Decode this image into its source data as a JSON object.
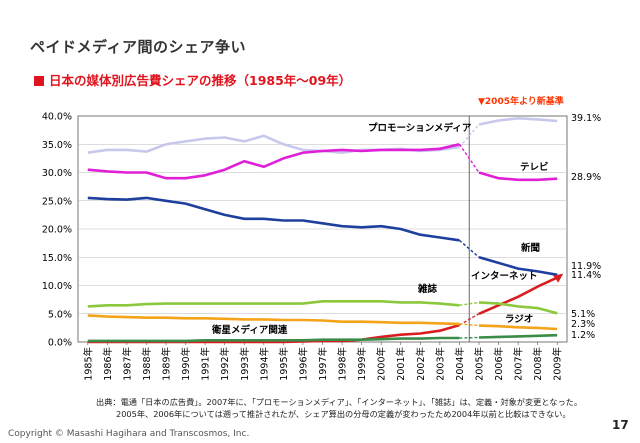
{
  "slide": {
    "title": "ペイドメディア間のシェア争い",
    "subtitle": "日本の媒体別広告費シェアの推移（1985年～09年）",
    "note": "▼2005年より新基準",
    "source_lines": [
      "出典：電通「日本の広告費」。2007年に、「プロモーションメディア」、「インターネット」、「雑誌」は、定義・対象が変更となった。",
      "2005年、2006年については遡って推計されたが、シェア算出の分母の定義が変わったため2004年以前と比較はできない。"
    ],
    "copyright": "Copyright © Masashi Hagihara and Transcosmos, Inc.",
    "page_number": "17"
  },
  "chart_data": {
    "type": "line",
    "x": [
      "1985年",
      "1986年",
      "1987年",
      "1988年",
      "1989年",
      "1990年",
      "1991年",
      "1992年",
      "1993年",
      "1994年",
      "1995年",
      "1996年",
      "1997年",
      "1998年",
      "1999年",
      "2000年",
      "2001年",
      "2002年",
      "2003年",
      "2004年",
      "2005年",
      "2006年",
      "2007年",
      "2008年",
      "2009年"
    ],
    "ylim": [
      0,
      40
    ],
    "yticks": [
      "0.0%",
      "5.0%",
      "10.0%",
      "15.0%",
      "20.0%",
      "25.0%",
      "30.0%",
      "35.0%",
      "40.0%"
    ],
    "break_after_index": 19,
    "series": [
      {
        "name": "プロモーションメディア",
        "color": "#c8c8ec",
        "end_label": "39.1%",
        "values": [
          33.5,
          34.0,
          34.0,
          33.7,
          35.0,
          35.5,
          36.0,
          36.2,
          35.5,
          36.5,
          35.0,
          34.0,
          33.8,
          33.5,
          34.0,
          34.0,
          34.2,
          33.8,
          34.0,
          34.5,
          38.5,
          39.2,
          39.6,
          39.4,
          39.1
        ]
      },
      {
        "name": "テレビ",
        "color": "#e020d8",
        "end_label": "28.9%",
        "values": [
          30.5,
          30.2,
          30.0,
          30.0,
          29.0,
          29.0,
          29.5,
          30.5,
          32.0,
          31.0,
          32.5,
          33.5,
          33.8,
          34.0,
          33.8,
          34.0,
          34.0,
          34.0,
          34.2,
          35.0,
          30.0,
          29.0,
          28.7,
          28.7,
          28.9
        ]
      },
      {
        "name": "新聞",
        "color": "#1f3f9e",
        "end_label": "11.9%",
        "values": [
          25.5,
          25.3,
          25.2,
          25.5,
          25.0,
          24.5,
          23.5,
          22.5,
          21.8,
          21.8,
          21.5,
          21.5,
          21.0,
          20.5,
          20.3,
          20.5,
          20.0,
          19.0,
          18.5,
          18.0,
          15.0,
          14.0,
          13.0,
          12.5,
          11.9
        ]
      },
      {
        "name": "インターネット",
        "color": "#d81e1e",
        "end_label": "11.4%",
        "values": [
          0,
          0,
          0,
          0,
          0,
          0,
          0,
          0,
          0,
          0,
          0,
          0.1,
          0.2,
          0.2,
          0.4,
          0.9,
          1.3,
          1.5,
          2.0,
          3.0,
          5.0,
          6.5,
          8.0,
          9.8,
          11.4
        ]
      },
      {
        "name": "雑誌",
        "color": "#8cc83c",
        "end_label": "5.1%",
        "values": [
          6.3,
          6.5,
          6.5,
          6.7,
          6.8,
          6.8,
          6.8,
          6.8,
          6.8,
          6.8,
          6.8,
          6.8,
          7.2,
          7.2,
          7.2,
          7.2,
          7.0,
          7.0,
          6.8,
          6.5,
          7.0,
          6.8,
          6.3,
          6.0,
          5.1
        ]
      },
      {
        "name": "ラジオ",
        "color": "#f5a31a",
        "end_label": "2.3%",
        "values": [
          4.7,
          4.5,
          4.4,
          4.3,
          4.3,
          4.2,
          4.2,
          4.1,
          4.0,
          4.0,
          3.9,
          3.9,
          3.8,
          3.6,
          3.6,
          3.5,
          3.4,
          3.4,
          3.3,
          3.2,
          2.9,
          2.8,
          2.6,
          2.5,
          2.3
        ]
      },
      {
        "name": "衛星メディア関連",
        "color": "#3a8c48",
        "end_label": "1.2%",
        "values": [
          0.2,
          0.2,
          0.2,
          0.2,
          0.2,
          0.2,
          0.3,
          0.3,
          0.3,
          0.3,
          0.3,
          0.3,
          0.4,
          0.4,
          0.4,
          0.5,
          0.6,
          0.6,
          0.7,
          0.7,
          0.8,
          0.9,
          1.0,
          1.1,
          1.2
        ]
      }
    ]
  }
}
